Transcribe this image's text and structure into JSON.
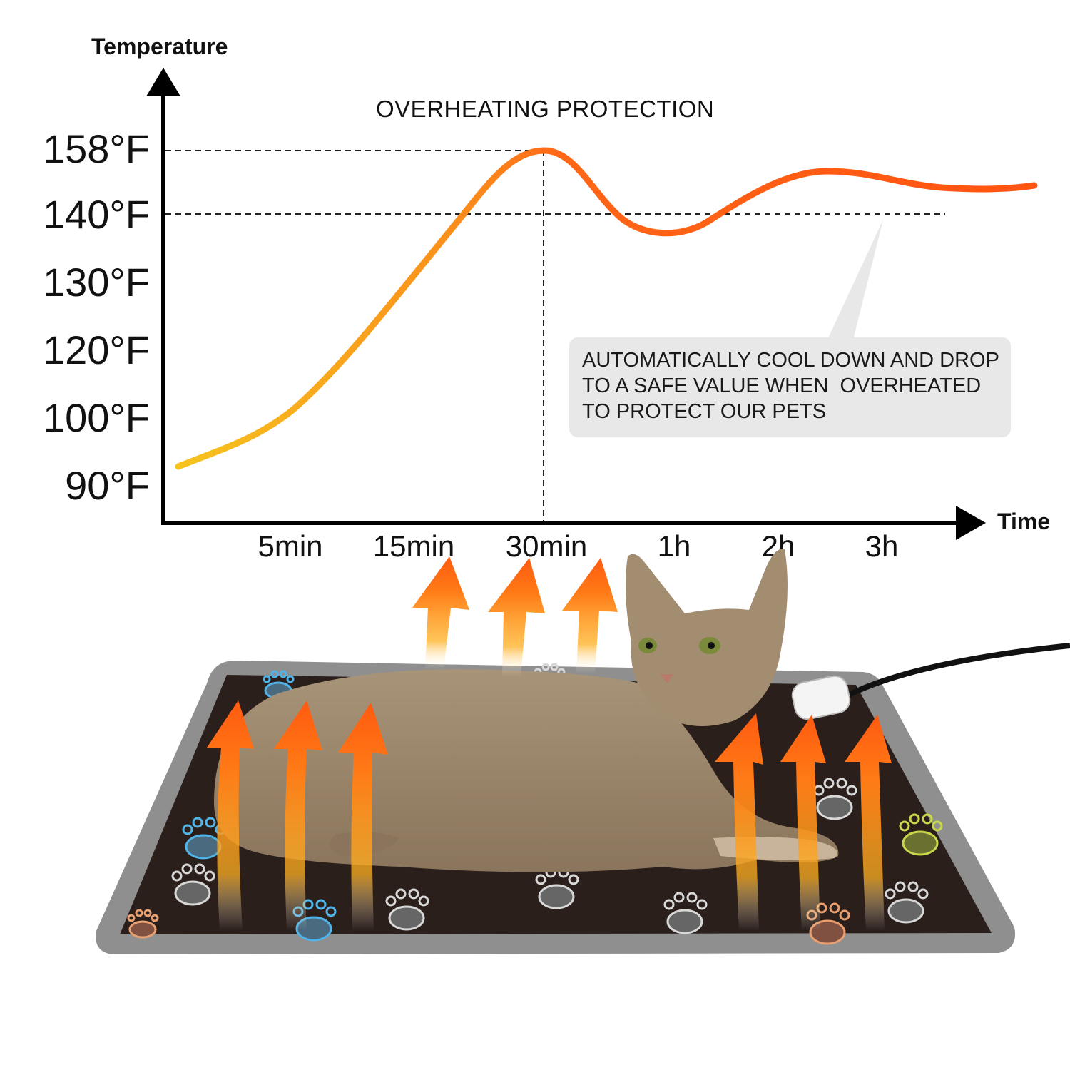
{
  "chart_data": {
    "type": "line",
    "title": "OVERHEATING PROTECTION",
    "ylabel": "Temperature",
    "xlabel": "Time",
    "y_tick_labels": [
      "158°F",
      "140°F",
      "130°F",
      "120°F",
      "100°F",
      "90°F"
    ],
    "x_tick_labels": [
      "5min",
      "15min",
      "30min",
      "1h",
      "2h",
      "3h"
    ],
    "reference_lines": [
      {
        "label": "158°F",
        "at_x": "30min"
      },
      {
        "label": "140°F"
      }
    ],
    "series": [
      {
        "x": [
          "start",
          "5min",
          "15min",
          "30min",
          "1h",
          "2h",
          "3h",
          "end"
        ],
        "y_labels_approx": [
          "~90°F",
          "~100°F",
          "~140°F",
          "158°F",
          "~137°F",
          "~147°F",
          "~145°F",
          "~144°F"
        ],
        "color_start": "#f4c020",
        "color_end": "#ff5a10"
      }
    ],
    "grid": false,
    "annotation": {
      "lines": [
        "AUTOMATICALLY COOL DOWN AND DROP",
        "TO A SAFE VALUE WHEN  OVERHEATED",
        "TO PROTECT OUR PETS"
      ]
    }
  },
  "colors": {
    "axis": "#000000",
    "curve_warm": "#f4c020",
    "curve_hot": "#ff5a10",
    "callout_bg": "#e8e8e8",
    "mat_border": "#8a8a8a",
    "mat_surface": "#2b1f1c",
    "heat_arrow": "#ff6a1a"
  },
  "illustration": {
    "subject": "cat-lying-on-heated-pet-mat",
    "icons": [
      "heat-arrow-icon",
      "paw-print-icon",
      "power-plug-icon"
    ]
  }
}
